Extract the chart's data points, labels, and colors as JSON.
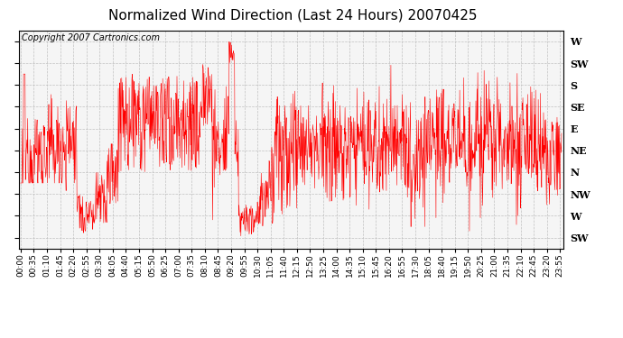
{
  "title": "Normalized Wind Direction (Last 24 Hours) 20070425",
  "copyright": "Copyright 2007 Cartronics.com",
  "line_color": "#ff0000",
  "bg_color": "#ffffff",
  "plot_bg_color": "#f5f5f5",
  "grid_color": "#bbbbbb",
  "ytick_labels": [
    "W",
    "SW",
    "S",
    "SE",
    "E",
    "NE",
    "N",
    "NW",
    "W",
    "SW"
  ],
  "ytick_values": [
    10,
    9,
    8,
    7,
    6,
    5,
    4,
    3,
    2,
    1
  ],
  "ylim": [
    0.5,
    10.5
  ],
  "title_fontsize": 11,
  "tick_fontsize": 6.5,
  "copyright_fontsize": 7,
  "xtick_interval_minutes": 35,
  "n_minutes": 1440
}
